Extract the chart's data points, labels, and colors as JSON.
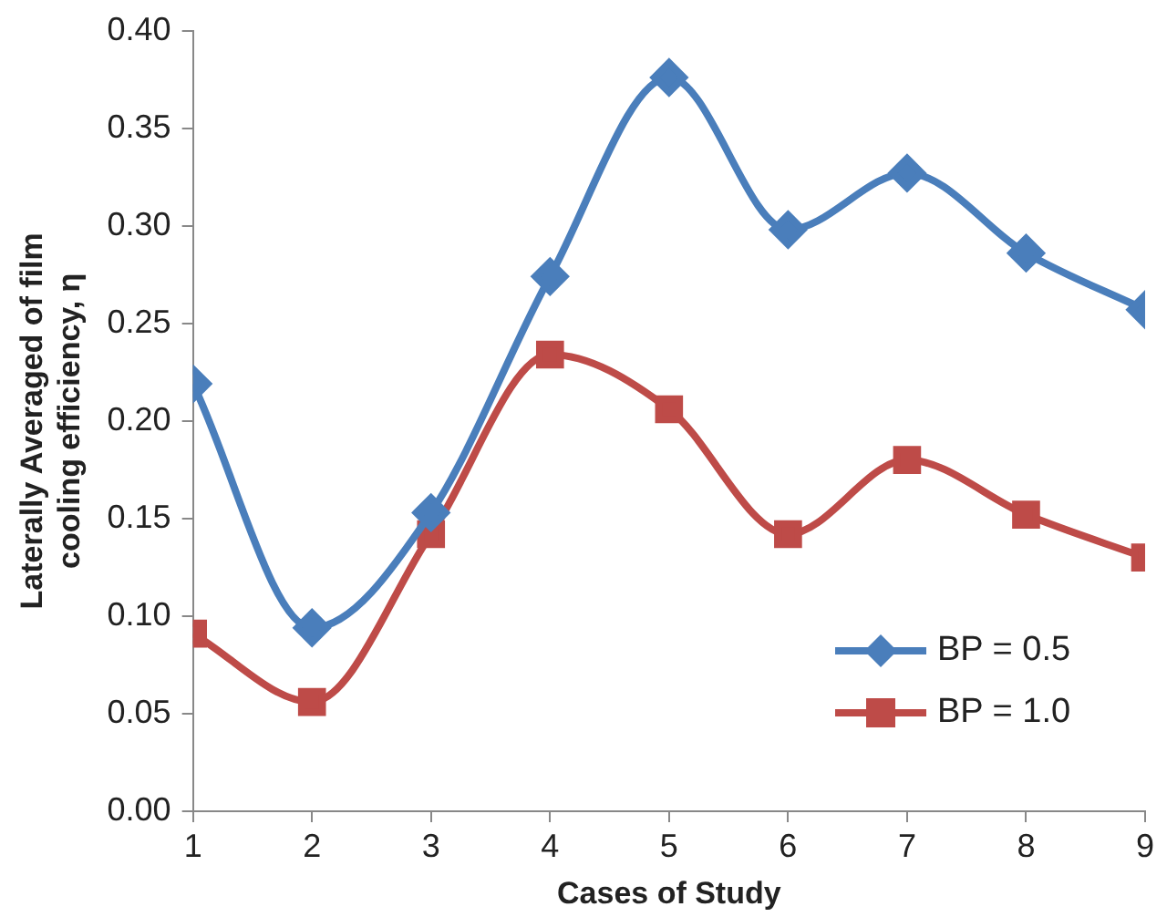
{
  "chart_data": {
    "type": "line",
    "xlabel": "Cases of Study",
    "ylabel": "Laterally Averaged of film cooling efficiency, η",
    "x": [
      1,
      2,
      3,
      4,
      5,
      6,
      7,
      8,
      9
    ],
    "xlim": [
      1,
      9
    ],
    "xticks": [
      1,
      2,
      3,
      4,
      5,
      6,
      7,
      8,
      9
    ],
    "ylim": [
      0,
      0.4
    ],
    "yticks": [
      {
        "value": 0,
        "label": "0.00"
      },
      {
        "value": 0.05,
        "label": "0.05"
      },
      {
        "value": 0.1,
        "label": "0.10"
      },
      {
        "value": 0.15,
        "label": "0.15"
      },
      {
        "value": 0.2,
        "label": "0.20"
      },
      {
        "value": 0.25,
        "label": "0.25"
      },
      {
        "value": 0.3,
        "label": "0.30"
      },
      {
        "value": 0.35,
        "label": "0.35"
      },
      {
        "value": 0.4,
        "label": "0.40"
      }
    ],
    "grid": false,
    "legend": "bottom right",
    "line_style": "solid",
    "series": [
      {
        "name": "BP = 0.5",
        "color": "#4a7ebb",
        "marker": "diamond",
        "values": [
          0.219,
          0.094,
          0.153,
          0.274,
          0.376,
          0.298,
          0.327,
          0.286,
          0.257
        ]
      },
      {
        "name": "BP = 1.0",
        "color": "#be4b48",
        "marker": "square",
        "values": [
          0.091,
          0.056,
          0.142,
          0.234,
          0.206,
          0.142,
          0.18,
          0.152,
          0.13
        ]
      }
    ]
  }
}
